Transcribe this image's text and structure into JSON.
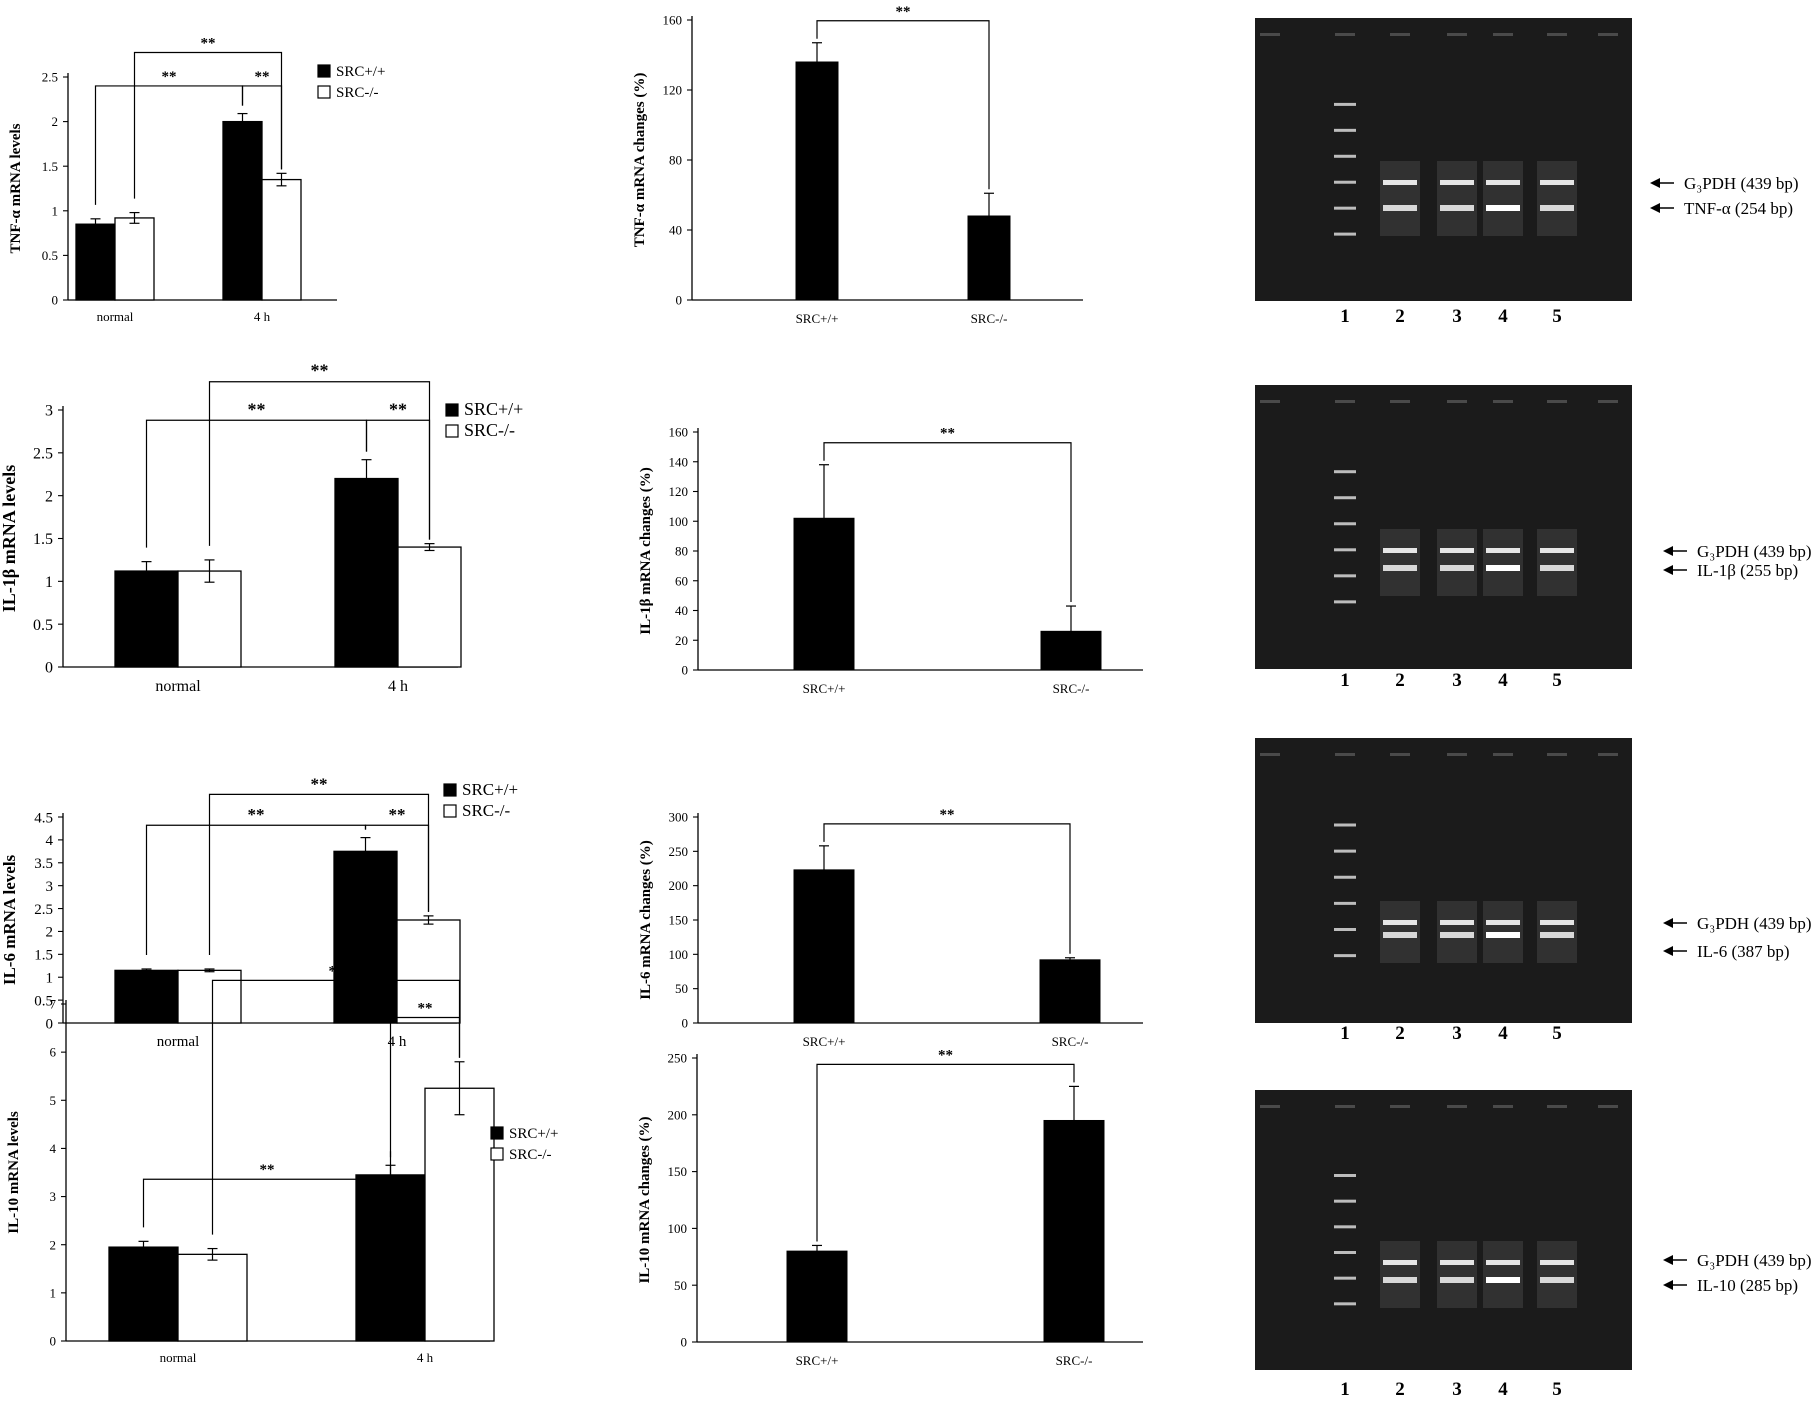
{
  "chart_data": [
    {
      "type": "bar",
      "panel": "A1",
      "ylabel": "TNF-α mRNA levels",
      "categories": [
        "normal",
        "4 h"
      ],
      "series": [
        {
          "name": "SRC+/+",
          "values": [
            0.85,
            2.0
          ],
          "errors": [
            0.06,
            0.09
          ]
        },
        {
          "name": "SRC-/-",
          "values": [
            0.92,
            1.35
          ],
          "errors": [
            0.06,
            0.07
          ]
        }
      ],
      "yticks": [
        "0",
        "0.5",
        "1",
        "1.5",
        "2",
        "2.5"
      ],
      "ylim": [
        0,
        2.5
      ],
      "significance": "**",
      "legend": "top-right"
    },
    {
      "type": "bar",
      "panel": "B1",
      "ylabel": "TNF-α mRNA changes (%)",
      "categories": [
        "SRC+/+",
        "SRC-/-"
      ],
      "series": [
        {
          "values": [
            136,
            48
          ],
          "errors": [
            11,
            13
          ]
        }
      ],
      "yticks": [
        "0",
        "40",
        "80",
        "120",
        "160"
      ],
      "ylim": [
        0,
        160
      ],
      "significance": "**"
    },
    {
      "type": "bar",
      "panel": "A2",
      "ylabel": "IL-1β mRNA levels",
      "categories": [
        "normal",
        "4 h"
      ],
      "series": [
        {
          "name": "SRC+/+",
          "values": [
            1.12,
            2.2
          ],
          "errors": [
            0.11,
            0.22
          ]
        },
        {
          "name": "SRC-/-",
          "values": [
            1.12,
            1.4
          ],
          "errors": [
            0.13,
            0.04
          ]
        }
      ],
      "yticks": [
        "0",
        "0.5",
        "1",
        "1.5",
        "2",
        "2.5",
        "3"
      ],
      "ylim": [
        0,
        3
      ],
      "significance": "**",
      "legend": "top-right"
    },
    {
      "type": "bar",
      "panel": "B2",
      "ylabel": "IL-1β mRNA changes (%)",
      "categories": [
        "SRC+/+",
        "SRC-/-"
      ],
      "series": [
        {
          "values": [
            102,
            26
          ],
          "errors": [
            36,
            17
          ]
        }
      ],
      "yticks": [
        "0",
        "20",
        "40",
        "60",
        "80",
        "100",
        "120",
        "140",
        "160"
      ],
      "ylim": [
        0,
        160
      ],
      "significance": "**"
    },
    {
      "type": "bar",
      "panel": "A3",
      "ylabel": "IL-6 mRNA levels",
      "categories": [
        "normal",
        "4 h"
      ],
      "series": [
        {
          "name": "SRC+/+",
          "values": [
            1.15,
            3.75
          ],
          "errors": [
            0.03,
            0.3
          ]
        },
        {
          "name": "SRC-/-",
          "values": [
            1.15,
            2.25
          ],
          "errors": [
            0.03,
            0.09
          ]
        }
      ],
      "yticks": [
        "0",
        "0.5",
        "1",
        "1.5",
        "2",
        "2.5",
        "3",
        "3.5",
        "4",
        "4.5"
      ],
      "ylim": [
        0,
        4.5
      ],
      "significance": "**",
      "legend": "top-right"
    },
    {
      "type": "bar",
      "panel": "B3",
      "ylabel": "IL-6 mRNA changes (%)",
      "categories": [
        "SRC+/+",
        "SRC-/-"
      ],
      "series": [
        {
          "values": [
            223,
            92
          ],
          "errors": [
            35,
            3
          ]
        }
      ],
      "yticks": [
        "0",
        "50",
        "100",
        "150",
        "200",
        "250",
        "300"
      ],
      "ylim": [
        0,
        300
      ],
      "significance": "**"
    },
    {
      "type": "bar",
      "panel": "A4",
      "ylabel": "IL-10 mRNA levels",
      "categories": [
        "normal",
        "4 h"
      ],
      "series": [
        {
          "name": "SRC+/+",
          "values": [
            1.95,
            3.45
          ],
          "errors": [
            0.12,
            0.2
          ]
        },
        {
          "name": "SRC-/-",
          "values": [
            1.8,
            5.25
          ],
          "errors": [
            0.12,
            0.55
          ]
        }
      ],
      "yticks": [
        "0",
        "1",
        "2",
        "3",
        "4",
        "5",
        "6",
        "7"
      ],
      "ylim": [
        0,
        7
      ],
      "significance": "**",
      "legend": "top-right"
    },
    {
      "type": "bar",
      "panel": "B4",
      "ylabel": "IL-10 mRNA changes (%)",
      "categories": [
        "SRC+/+",
        "SRC-/-"
      ],
      "series": [
        {
          "values": [
            80,
            195
          ],
          "errors": [
            5,
            30
          ]
        }
      ],
      "yticks": [
        "0",
        "50",
        "100",
        "150",
        "200",
        "250"
      ],
      "ylim": [
        0,
        250
      ],
      "significance": "**"
    }
  ],
  "gels": [
    {
      "lanes": [
        "1",
        "2",
        "3",
        "4",
        "5"
      ],
      "upper_label": "G₃PDH (439 bp)",
      "lower_label": "TNF-α (254 bp)"
    },
    {
      "lanes": [
        "1",
        "2",
        "3",
        "4",
        "5"
      ],
      "upper_label": "G₃PDH (439 bp)",
      "lower_label": "IL-1β  (255 bp)"
    },
    {
      "lanes": [
        "1",
        "2",
        "3",
        "4",
        "5"
      ],
      "upper_label": "G₃PDH (439 bp)",
      "lower_label": "IL-6  (387 bp)"
    },
    {
      "lanes": [
        "1",
        "2",
        "3",
        "4",
        "5"
      ],
      "upper_label": "G₃PDH (439 bp)",
      "lower_label": "IL-10  (285 bp)"
    }
  ]
}
